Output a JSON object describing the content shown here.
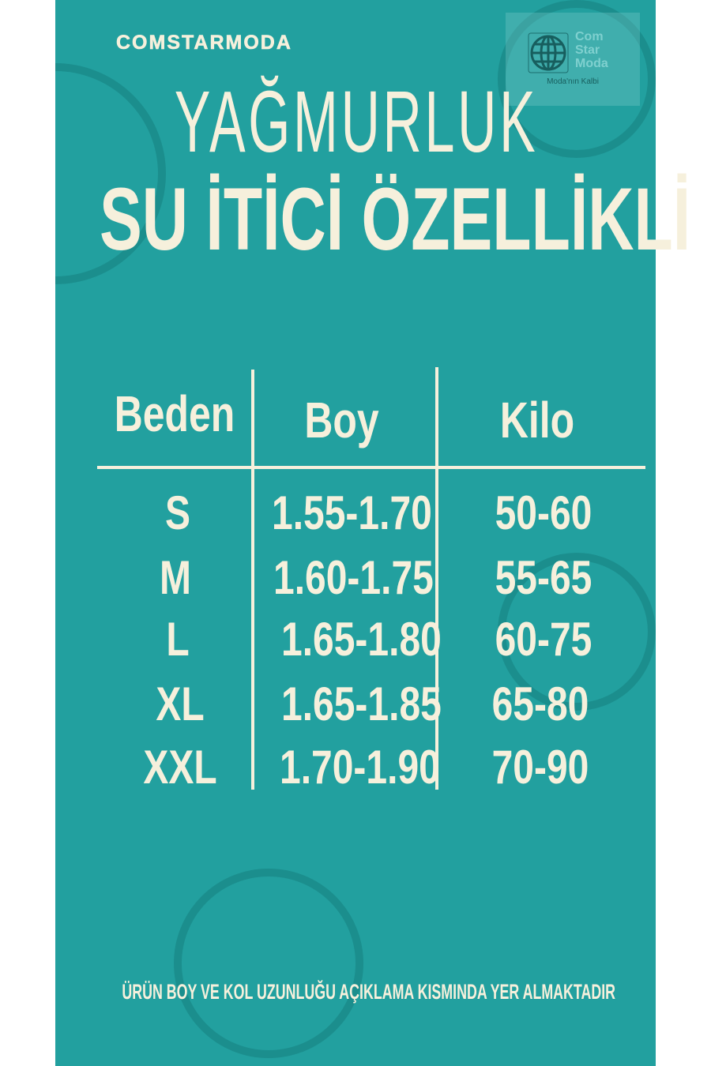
{
  "brand_text": "COMSTARMODA",
  "logo": {
    "line1": "Com",
    "line2": "Star",
    "line3": "Moda",
    "tagline": "Moda'nın Kalbi",
    "icon": "globe-icon"
  },
  "title": "YAĞMURLUK",
  "subtitle": "SU İTİCİ ÖZELLİKLİ",
  "table": {
    "headers": [
      "Beden",
      "Boy",
      "Kilo"
    ],
    "rows": [
      {
        "size": "S",
        "boy": "1.55-1.70",
        "kilo": "50-60"
      },
      {
        "size": "M",
        "boy": "1.60-1.75",
        "kilo": "55-65"
      },
      {
        "size": "L",
        "boy": "1.65-1.80",
        "kilo": "60-75"
      },
      {
        "size": "XL",
        "boy": "1.65-1.85",
        "kilo": "65-80"
      },
      {
        "size": "XXL",
        "boy": "1.70-1.90",
        "kilo": "70-90"
      }
    ]
  },
  "footer_note": "ÜRÜN BOY VE KOL UZUNLUĞU AÇIKLAMA KISMINDA YER ALMAKTADIR",
  "colors": {
    "background": "#22a09f",
    "text": "#f6f0dc"
  }
}
